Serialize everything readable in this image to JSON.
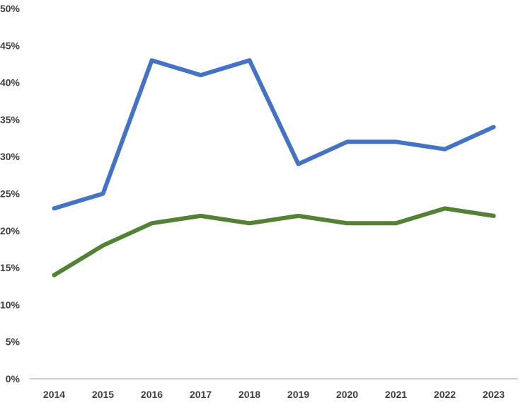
{
  "chart_data": {
    "type": "line",
    "categories": [
      "2014",
      "2015",
      "2016",
      "2017",
      "2018",
      "2019",
      "2020",
      "2021",
      "2022",
      "2023"
    ],
    "series": [
      {
        "color": "#4472c4",
        "values": [
          23,
          25,
          43,
          41,
          43,
          29,
          32,
          32,
          31,
          34
        ]
      },
      {
        "color": "#548235",
        "values": [
          14,
          18,
          21,
          22,
          21,
          22,
          21,
          21,
          23,
          22
        ]
      }
    ],
    "y_ticks": [
      "0%",
      "5%",
      "10%",
      "15%",
      "20%",
      "25%",
      "30%",
      "35%",
      "40%",
      "45%",
      "50%"
    ],
    "ylim": [
      0,
      50
    ],
    "y_unit": "%",
    "grid": false,
    "legend": "none"
  }
}
